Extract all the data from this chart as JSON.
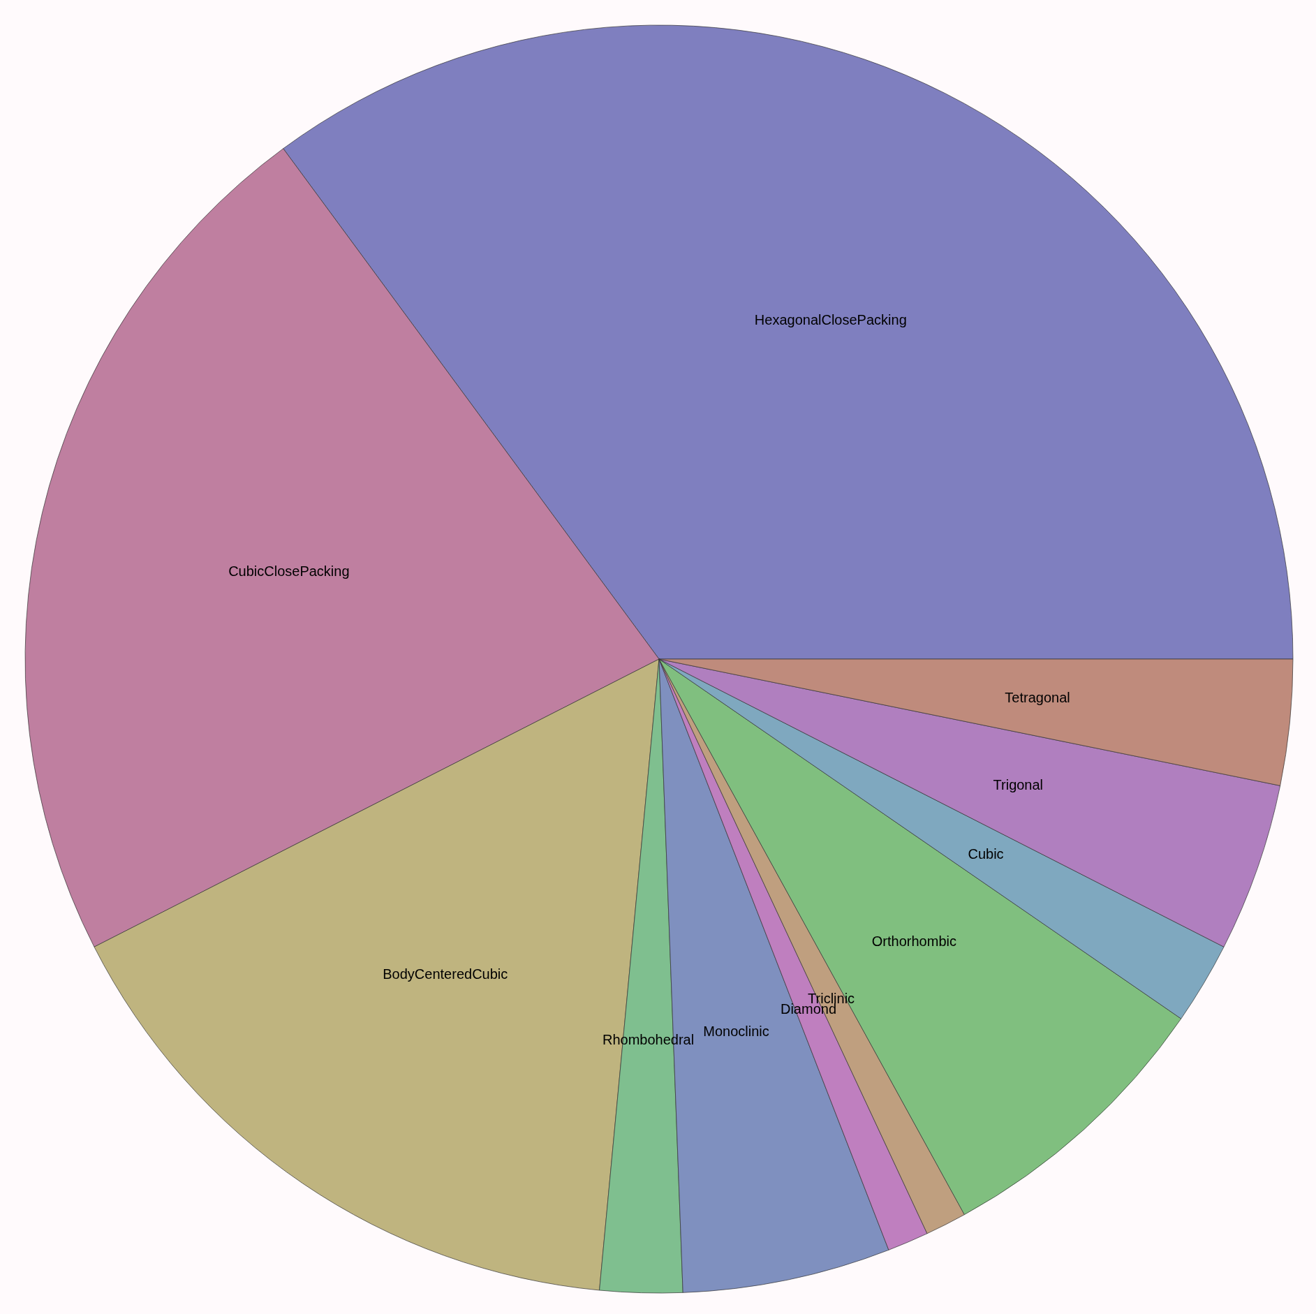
{
  "chart_data": {
    "type": "pie",
    "categories": [
      "HexagonalClosePacking",
      "CubicClosePacking",
      "BodyCenteredCubic",
      "Rhombohedral",
      "Monoclinic",
      "Diamond",
      "Triclinic",
      "Orthorhombic",
      "Cubic",
      "Trigonal",
      "Tetragonal"
    ],
    "values": [
      35.1,
      22.4,
      16.0,
      2.1,
      5.3,
      1.05,
      1.05,
      7.4,
      2.1,
      4.3,
      3.2
    ],
    "colors": [
      "#7f7fbf",
      "#bf7fa0",
      "#bfb47f",
      "#7fbf8f",
      "#7f90bf",
      "#bf7fbf",
      "#bf9f7f",
      "#80bf7f",
      "#7fa8bf",
      "#b07fbf",
      "#bf8b7c"
    ],
    "legend": false
  }
}
